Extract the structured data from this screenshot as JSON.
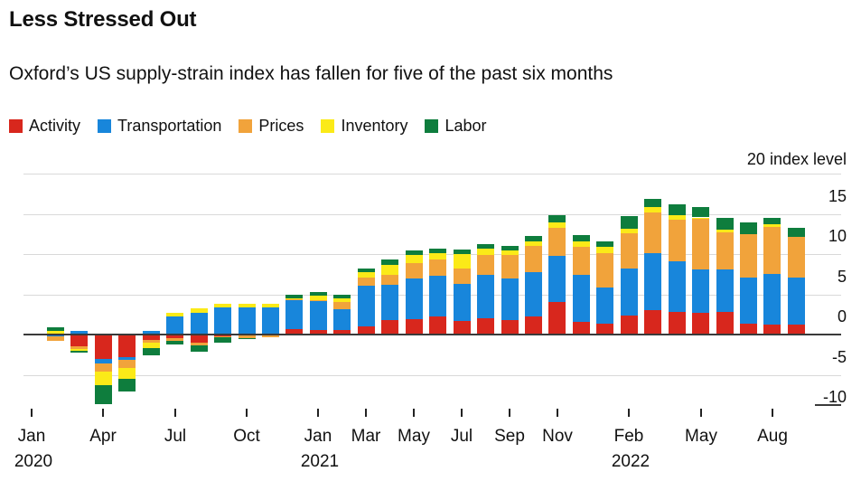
{
  "header": {
    "title": "Less Stressed Out",
    "subtitle": "Oxford’s US supply-strain index has fallen for five of the past six months"
  },
  "legend": [
    {
      "label": "Activity",
      "color": "#d8271d"
    },
    {
      "label": "Transportation",
      "color": "#1886db"
    },
    {
      "label": "Prices",
      "color": "#f1a33b"
    },
    {
      "label": "Inventory",
      "color": "#fbea18"
    },
    {
      "label": "Labor",
      "color": "#0e7d3d"
    }
  ],
  "colors": {
    "grid": "#d9d9d9",
    "zero_line": "#3a3a3a",
    "text": "#111111"
  },
  "y_axis": {
    "top_label": "20 index level",
    "tick_labels": [
      "15",
      "10",
      "5",
      "0",
      "-5",
      "-10"
    ]
  },
  "chart_data": {
    "type": "bar",
    "stacked": true,
    "title": "Less Stressed Out",
    "ylabel": "index level",
    "ylim": [
      -10,
      20
    ],
    "gridline_values": [
      20,
      15,
      10,
      5,
      0,
      -5
    ],
    "stub_gridline_value": -10,
    "legend_position": "top-left",
    "categories": [
      "Jan 2020",
      "Feb 2020",
      "Mar 2020",
      "Apr 2020",
      "May 2020",
      "Jun 2020",
      "Jul 2020",
      "Aug 2020",
      "Sep 2020",
      "Oct 2020",
      "Nov 2020",
      "Dec 2020",
      "Jan 2021",
      "Feb 2021",
      "Mar 2021",
      "Apr 2021",
      "May 2021",
      "Jun 2021",
      "Jul 2021",
      "Aug 2021",
      "Sep 2021",
      "Oct 2021",
      "Nov 2021",
      "Dec 2021",
      "Jan 2022",
      "Feb 2022",
      "Mar 2022",
      "Apr 2022",
      "May 2022",
      "Jun 2022",
      "Jul 2022",
      "Aug 2022",
      "Sep 2022"
    ],
    "series": [
      {
        "name": "Activity",
        "color": "#d8271d",
        "values": [
          0,
          0.15,
          -1.5,
          -3.0,
          -2.8,
          -0.7,
          -0.45,
          -1.05,
          -0.2,
          -0.05,
          0,
          0.7,
          0.6,
          0.55,
          1.0,
          1.8,
          1.9,
          2.3,
          1.7,
          2.0,
          1.8,
          2.3,
          4.0,
          1.6,
          1.4,
          2.35,
          3.0,
          2.85,
          2.65,
          2.85,
          1.3,
          1.2,
          1.2
        ]
      },
      {
        "name": "Transportation",
        "color": "#1886db",
        "values": [
          0,
          -0.25,
          0.45,
          -0.6,
          -0.4,
          0.45,
          2.2,
          2.7,
          3.35,
          3.4,
          3.4,
          3.6,
          3.6,
          2.6,
          5.1,
          4.4,
          5.1,
          5.0,
          4.6,
          5.45,
          5.15,
          5.5,
          5.8,
          5.8,
          4.45,
          5.9,
          7.1,
          6.3,
          5.4,
          5.2,
          5.75,
          6.3,
          5.85
        ]
      },
      {
        "name": "Prices",
        "color": "#f1a33b",
        "values": [
          0,
          -0.5,
          -0.3,
          -1.0,
          -1.0,
          -0.35,
          -0.3,
          -0.3,
          -0.1,
          -0.35,
          -0.3,
          0.1,
          0.1,
          0.85,
          0.95,
          1.2,
          1.9,
          2.0,
          1.85,
          2.4,
          2.9,
          3.2,
          3.5,
          3.45,
          4.3,
          4.35,
          5.1,
          5.1,
          6.3,
          4.65,
          5.45,
          5.85,
          5.1
        ]
      },
      {
        "name": "Inventory",
        "color": "#fbea18",
        "values": [
          0,
          0.35,
          -0.2,
          -1.7,
          -1.3,
          -0.65,
          0.5,
          0.55,
          0.45,
          0.45,
          0.45,
          0.15,
          0.55,
          0.45,
          0.65,
          1.3,
          0.95,
          0.85,
          1.85,
          0.8,
          0.6,
          0.55,
          0.65,
          0.7,
          0.75,
          0.55,
          0.65,
          0.55,
          0.2,
          0.35,
          0,
          0.35,
          0
        ]
      },
      {
        "name": "Labor",
        "color": "#0e7d3d",
        "values": [
          0,
          0.45,
          -0.3,
          -2.4,
          -1.6,
          -0.85,
          -0.45,
          -0.8,
          -0.7,
          -0.1,
          0,
          0.45,
          0.45,
          0.45,
          0.5,
          0.65,
          0.55,
          0.55,
          0.55,
          0.55,
          0.55,
          0.65,
          0.85,
          0.85,
          0.7,
          1.55,
          0.95,
          1.35,
          1.3,
          1.4,
          1.4,
          0.8,
          1.1
        ]
      }
    ],
    "x_ticks": [
      {
        "month_index": 0,
        "label": "Jan",
        "year": "2020"
      },
      {
        "month_index": 3,
        "label": "Apr",
        "year": ""
      },
      {
        "month_index": 6,
        "label": "Jul",
        "year": ""
      },
      {
        "month_index": 9,
        "label": "Oct",
        "year": ""
      },
      {
        "month_index": 12,
        "label": "Jan",
        "year": "2021"
      },
      {
        "month_index": 14,
        "label": "Mar",
        "year": ""
      },
      {
        "month_index": 16,
        "label": "May",
        "year": ""
      },
      {
        "month_index": 18,
        "label": "Jul",
        "year": ""
      },
      {
        "month_index": 20,
        "label": "Sep",
        "year": ""
      },
      {
        "month_index": 22,
        "label": "Nov",
        "year": ""
      },
      {
        "month_index": 25,
        "label": "Feb",
        "year": "2022"
      },
      {
        "month_index": 28,
        "label": "May",
        "year": ""
      },
      {
        "month_index": 31,
        "label": "Aug",
        "year": ""
      }
    ]
  }
}
